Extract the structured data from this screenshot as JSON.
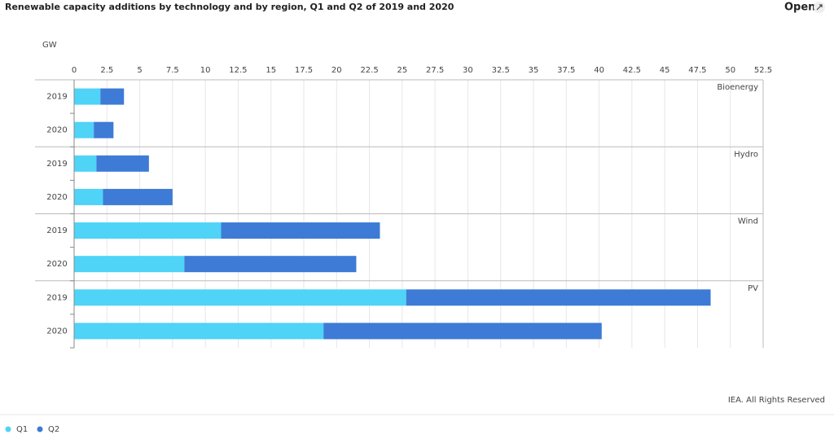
{
  "chart_data": {
    "type": "stacked-hbar",
    "title": "Renewable capacity additions by technology and by region, Q1 and Q2 of 2019 and 2020",
    "x_label": "GW",
    "groups": [
      "Bioenergy",
      "Hydro",
      "Wind",
      "PV"
    ],
    "categories": [
      "2019",
      "2020",
      "2019",
      "2020",
      "2019",
      "2020",
      "2019",
      "2020"
    ],
    "series": [
      {
        "name": "Q1",
        "color": "#4fd3f7",
        "values": [
          2.0,
          1.5,
          1.7,
          2.2,
          11.2,
          8.4,
          25.3,
          19.0
        ]
      },
      {
        "name": "Q2",
        "color": "#3d7bd6",
        "values": [
          1.8,
          1.5,
          4.0,
          5.3,
          12.1,
          13.1,
          23.2,
          21.2
        ]
      }
    ],
    "xlim": [
      0,
      52.5
    ],
    "xticks": [
      0,
      2.5,
      5,
      7.5,
      10,
      12.5,
      15,
      17.5,
      20,
      22.5,
      25,
      27.5,
      30,
      32.5,
      35,
      37.5,
      40,
      42.5,
      45,
      47.5,
      50,
      52.5
    ],
    "grid": true,
    "source": "IEA. All Rights Reserved"
  },
  "ui": {
    "open": "Open"
  }
}
